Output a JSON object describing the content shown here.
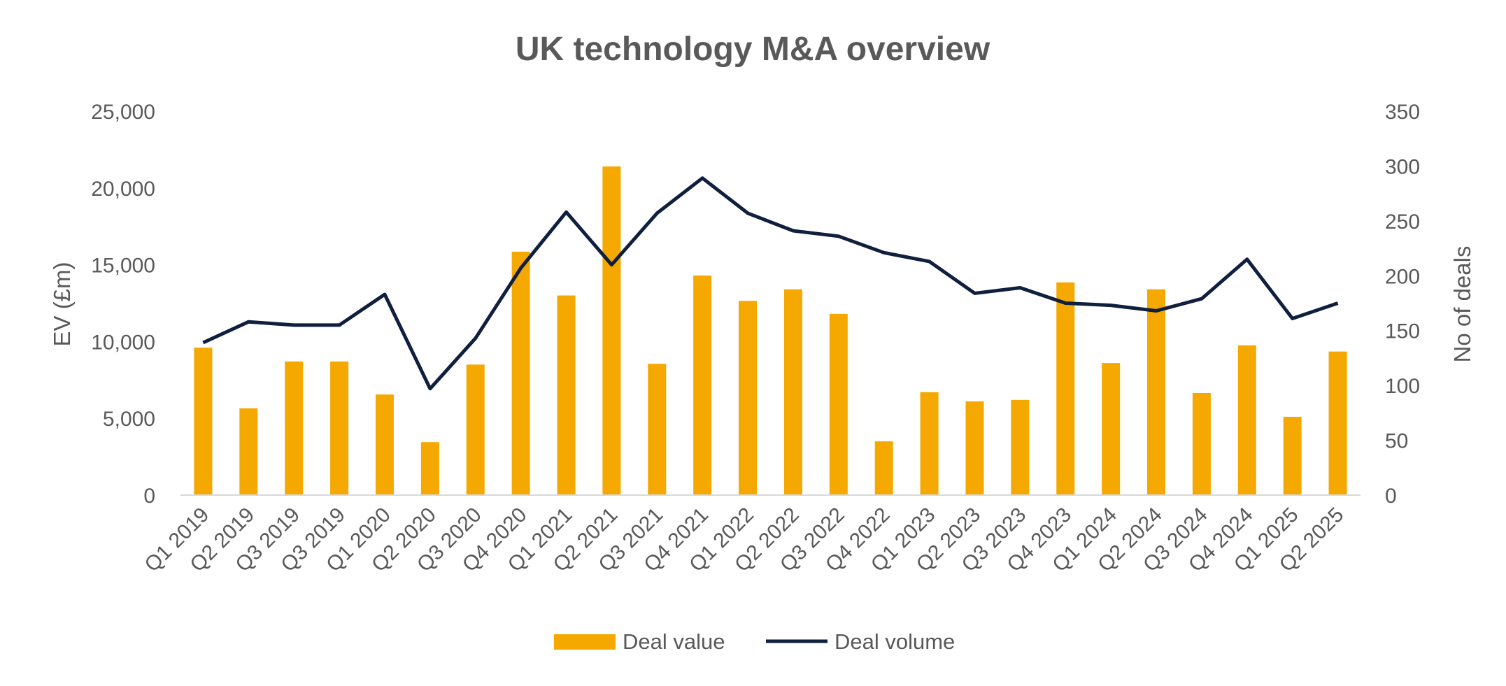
{
  "chart_data": {
    "type": "bar",
    "title": "UK technology M&A overview",
    "categories": [
      "Q1 2019",
      "Q2 2019",
      "Q3 2019",
      "Q3 2019",
      "Q1 2020",
      "Q2 2020",
      "Q3 2020",
      "Q4 2020",
      "Q1 2021",
      "Q2 2021",
      "Q3 2021",
      "Q4 2021",
      "Q1 2022",
      "Q2 2022",
      "Q3 2022",
      "Q4 2022",
      "Q1 2023",
      "Q2 2023",
      "Q3 2023",
      "Q4 2023",
      "Q1 2024",
      "Q2 2024",
      "Q3 2024",
      "Q4 2024",
      "Q1 2025",
      "Q2 2025"
    ],
    "series": [
      {
        "name": "Deal value",
        "type": "bar",
        "axis": "left",
        "color": "#F5A800",
        "values": [
          9600,
          5650,
          8700,
          8700,
          6550,
          3450,
          8500,
          15850,
          13000,
          21400,
          8550,
          14300,
          12650,
          13400,
          11800,
          3500,
          6700,
          6100,
          6200,
          13850,
          8600,
          13400,
          6650,
          9750,
          5100,
          9350
        ]
      },
      {
        "name": "Deal volume",
        "type": "line",
        "axis": "right",
        "color": "#0F1F3D",
        "values": [
          139,
          158,
          155,
          155,
          183,
          97,
          143,
          207,
          258,
          210,
          257,
          289,
          257,
          241,
          236,
          221,
          213,
          184,
          189,
          175,
          173,
          168,
          179,
          215,
          161,
          175
        ]
      }
    ],
    "ylabel": "EV (£m)",
    "y2label": "No of deals",
    "ylim": [
      0,
      25000
    ],
    "y2lim": [
      0,
      350
    ],
    "yticks": [
      "0",
      "5,000",
      "10,000",
      "15,000",
      "20,000",
      "25,000"
    ],
    "y2ticks": [
      "0",
      "50",
      "100",
      "150",
      "200",
      "250",
      "300",
      "350"
    ],
    "legend": [
      "Deal value",
      "Deal volume"
    ],
    "legend_position": "bottom",
    "grid": false
  }
}
